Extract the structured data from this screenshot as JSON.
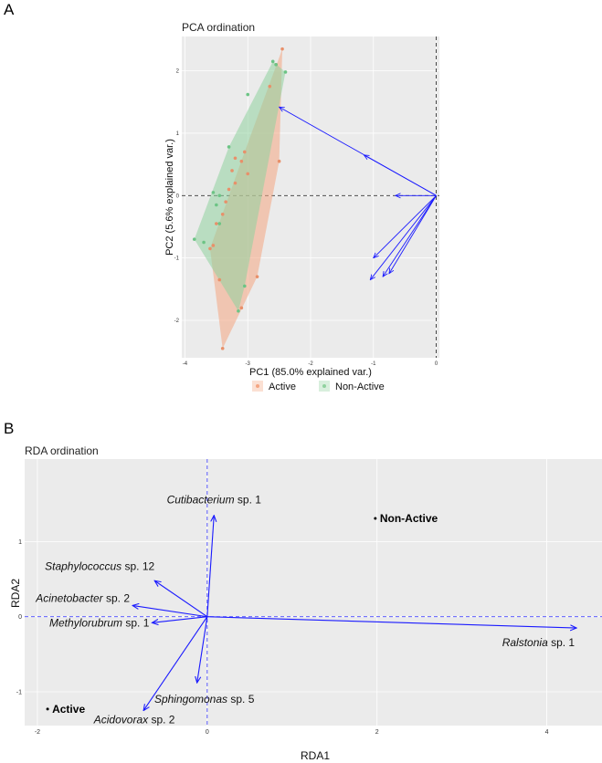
{
  "panels": {
    "a_letter": "A",
    "b_letter": "B"
  },
  "colors": {
    "active": "#f4a582",
    "non_active": "#8fd19e",
    "arrow": "#1a1aff",
    "panel_bg": "#ebebeb",
    "grid": "#ffffff"
  },
  "chart_data": [
    {
      "type": "scatter",
      "title": "PCA ordination",
      "xlabel": "PC1 (85.0% explained var.)",
      "ylabel": "PC2 (5.6% explained var.)",
      "xlim": [
        -4.05,
        0.05
      ],
      "ylim": [
        -2.6,
        2.55
      ],
      "x_ticks": [
        -4,
        -3,
        -2,
        -1,
        0
      ],
      "y_ticks": [
        -2,
        -1,
        0,
        1,
        2
      ],
      "legend": {
        "placement": "bottom",
        "entries": [
          "Active",
          "Non-Active"
        ]
      },
      "series": [
        {
          "name": "Active",
          "color": "#f4a582",
          "points": [
            [
              -2.45,
              2.35
            ],
            [
              -2.55,
              2.1
            ],
            [
              -2.65,
              1.75
            ],
            [
              -2.5,
              0.55
            ],
            [
              -3.05,
              0.7
            ],
            [
              -3.1,
              0.55
            ],
            [
              -3.2,
              0.6
            ],
            [
              -3.25,
              0.4
            ],
            [
              -3.3,
              0.1
            ],
            [
              -3.35,
              -0.1
            ],
            [
              -3.4,
              -0.3
            ],
            [
              -3.5,
              -0.45
            ],
            [
              -3.6,
              -0.85
            ],
            [
              -3.45,
              -1.35
            ],
            [
              -3.4,
              -2.45
            ],
            [
              -3.1,
              -1.8
            ],
            [
              -2.85,
              -1.3
            ],
            [
              -3.55,
              -0.8
            ],
            [
              -3.2,
              0.2
            ],
            [
              -3.0,
              0.35
            ]
          ],
          "hull": [
            [
              -2.45,
              2.35
            ],
            [
              -2.5,
              0.55
            ],
            [
              -2.85,
              -1.3
            ],
            [
              -3.4,
              -2.45
            ],
            [
              -3.6,
              -0.85
            ],
            [
              -3.05,
              0.7
            ]
          ]
        },
        {
          "name": "Non-Active",
          "color": "#8fd19e",
          "points": [
            [
              -2.6,
              2.15
            ],
            [
              -2.4,
              1.98
            ],
            [
              -3.0,
              1.62
            ],
            [
              -3.3,
              0.78
            ],
            [
              -3.55,
              0.05
            ],
            [
              -3.5,
              -0.15
            ],
            [
              -3.45,
              -0.45
            ],
            [
              -3.7,
              -0.75
            ],
            [
              -3.85,
              -0.7
            ],
            [
              -3.15,
              -1.85
            ],
            [
              -3.05,
              -1.45
            ],
            [
              -2.55,
              2.1
            ],
            [
              -3.45,
              0.0
            ]
          ],
          "hull": [
            [
              -2.6,
              2.15
            ],
            [
              -2.4,
              1.98
            ],
            [
              -3.05,
              -1.45
            ],
            [
              -3.15,
              -1.85
            ],
            [
              -3.85,
              -0.7
            ],
            [
              -3.3,
              0.78
            ]
          ]
        }
      ],
      "loadings": [
        [
          -2.5,
          1.42
        ],
        [
          -1.15,
          0.65
        ],
        [
          -0.65,
          0.0
        ],
        [
          -1.0,
          -1.0
        ],
        [
          -1.05,
          -1.35
        ],
        [
          -0.75,
          -1.25
        ],
        [
          -0.85,
          -1.3
        ]
      ]
    },
    {
      "type": "scatter",
      "title": "RDA ordination",
      "xlabel": "RDA1",
      "ylabel": "RDA2",
      "xlim": [
        -2.15,
        4.65
      ],
      "ylim": [
        -1.45,
        2.1
      ],
      "x_ticks": [
        -2,
        0,
        2,
        4
      ],
      "y_ticks": [
        -1,
        0,
        1
      ],
      "sites": [
        {
          "label": "Active",
          "x": -1.88,
          "y": -1.23
        },
        {
          "label": "Non-Active",
          "x": 1.98,
          "y": 1.31
        }
      ],
      "species": [
        {
          "genus": "Cutibacterium",
          "suffix": " sp. 1",
          "x": 0.08,
          "y": 1.35
        },
        {
          "genus": "Staphylococcus",
          "suffix": " sp. 12",
          "x": -0.62,
          "y": 0.48
        },
        {
          "genus": "Acinetobacter",
          "suffix": " sp. 2",
          "x": -0.88,
          "y": 0.15
        },
        {
          "genus": "Methylorubrum",
          "suffix": " sp. 1",
          "x": -0.65,
          "y": -0.08
        },
        {
          "genus": "Ralstonia",
          "suffix": " sp. 1",
          "x": 4.35,
          "y": -0.15
        },
        {
          "genus": "Sphingomonas",
          "suffix": " sp. 5",
          "x": -0.12,
          "y": -0.88
        },
        {
          "genus": "Acidovorax",
          "suffix": " sp. 2",
          "x": -0.75,
          "y": -1.25
        }
      ]
    }
  ]
}
